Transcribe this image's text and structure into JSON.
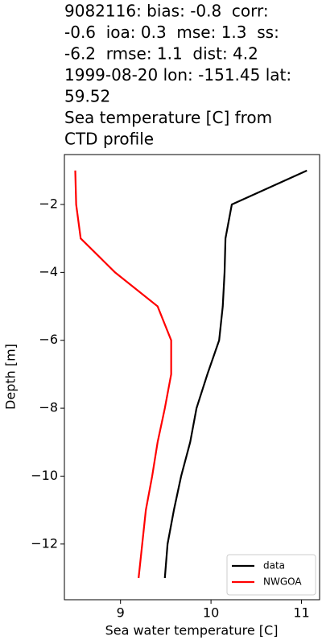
{
  "chart_data": {
    "type": "line",
    "title": [
      "9082116: bias: -0.8  corr:",
      "-0.6  ioa: 0.3  mse: 1.3  ss:",
      "-6.2  rmse: 1.1  dist: 4.2",
      "1999-08-20 lon: -151.45 lat:",
      "59.52",
      "Sea temperature [C] from",
      "CTD profile"
    ],
    "xlabel": "Sea water temperature [C]",
    "ylabel": "Depth [m]",
    "xlim": [
      8.38,
      11.2
    ],
    "ylim": [
      -13.64,
      -0.53
    ],
    "xticks": [
      9,
      10,
      11
    ],
    "yticks": [
      {
        "value": -2,
        "label": "−2"
      },
      {
        "value": -4,
        "label": "−4"
      },
      {
        "value": -6,
        "label": "−6"
      },
      {
        "value": -8,
        "label": "−8"
      },
      {
        "value": -10,
        "label": "−10"
      },
      {
        "value": -12,
        "label": "−12"
      }
    ],
    "legend": "lower right",
    "series": [
      {
        "name": "data",
        "color": "#000000",
        "x": [
          11.06,
          10.23,
          10.16,
          10.15,
          10.13,
          10.09,
          9.96,
          9.84,
          9.77,
          9.67,
          9.59,
          9.52,
          9.49
        ],
        "y": [
          -1,
          -2,
          -3,
          -4,
          -5,
          -6,
          -7,
          -8,
          -9,
          -10,
          -11,
          -12,
          -13
        ]
      },
      {
        "name": "NWGOA",
        "color": "#ff0000",
        "x": [
          8.5,
          8.51,
          8.56,
          8.94,
          9.41,
          9.56,
          9.56,
          9.49,
          9.41,
          9.35,
          9.28,
          9.24,
          9.2
        ],
        "y": [
          -1,
          -2,
          -3,
          -4,
          -5,
          -6,
          -7,
          -8,
          -9,
          -10,
          -11,
          -12,
          -13
        ]
      }
    ]
  }
}
